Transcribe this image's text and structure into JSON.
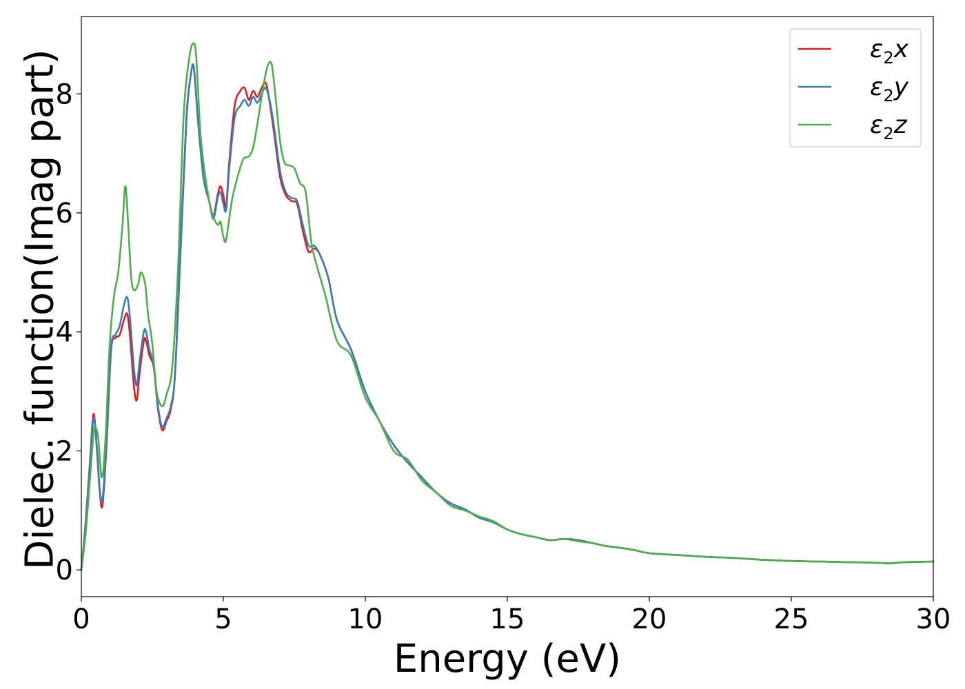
{
  "chart_data": {
    "type": "line",
    "title": "",
    "xlabel": "Energy (eV)",
    "ylabel": "Dielec. function(Imag part)",
    "xlim": [
      0,
      30
    ],
    "ylim": [
      -0.45,
      9.3
    ],
    "xticks": [
      0,
      5,
      10,
      15,
      20,
      25,
      30
    ],
    "yticks": [
      0,
      2,
      4,
      6,
      8
    ],
    "grid": false,
    "legend_position": "top-right",
    "series": [
      {
        "name": "ε2x",
        "legend": {
          "base": "ε",
          "sub": "2",
          "tail": "x"
        },
        "color": "#e41a1c",
        "x": [
          0,
          0.15,
          0.3,
          0.43,
          0.55,
          0.65,
          0.75,
          0.9,
          1.05,
          1.2,
          1.35,
          1.5,
          1.62,
          1.72,
          1.85,
          1.95,
          2.05,
          2.2,
          2.28,
          2.4,
          2.55,
          2.7,
          2.85,
          3.0,
          3.15,
          3.3,
          3.5,
          3.7,
          3.85,
          3.96,
          4.1,
          4.3,
          4.5,
          4.65,
          4.8,
          4.9,
          5.0,
          5.1,
          5.2,
          5.4,
          5.6,
          5.75,
          5.9,
          6.05,
          6.2,
          6.35,
          6.5,
          6.65,
          6.8,
          7.0,
          7.2,
          7.4,
          7.6,
          7.8,
          8.0,
          8.2,
          8.4,
          8.7,
          9.0,
          9.5,
          10.0,
          10.5,
          11.0,
          11.5,
          12.0,
          12.5,
          13.0,
          13.5,
          14.0,
          14.5,
          15.0,
          15.5,
          16.0,
          16.5,
          17.0,
          17.5,
          18.0,
          18.5,
          19.0,
          19.5,
          20.0,
          21.0,
          22.0,
          23.0,
          24.0,
          25.0,
          26.0,
          27.0,
          28.0,
          28.5,
          29.0,
          30.0
        ],
        "y": [
          0,
          0.8,
          1.8,
          2.62,
          2.0,
          1.3,
          1.1,
          2.2,
          3.7,
          3.9,
          3.95,
          4.2,
          4.3,
          3.9,
          3.1,
          2.85,
          3.3,
          3.85,
          3.85,
          3.6,
          3.4,
          2.7,
          2.35,
          2.5,
          2.7,
          3.3,
          5.5,
          7.6,
          8.3,
          8.45,
          7.6,
          6.6,
          6.2,
          5.95,
          6.3,
          6.45,
          6.3,
          6.1,
          6.8,
          7.8,
          8.05,
          8.1,
          7.9,
          8.05,
          7.95,
          8.1,
          8.18,
          7.8,
          7.3,
          6.6,
          6.3,
          6.2,
          6.15,
          5.7,
          5.35,
          5.4,
          5.3,
          4.9,
          4.2,
          3.7,
          3.0,
          2.5,
          2.1,
          1.8,
          1.55,
          1.3,
          1.12,
          1.02,
          0.88,
          0.8,
          0.68,
          0.6,
          0.55,
          0.5,
          0.52,
          0.5,
          0.45,
          0.4,
          0.37,
          0.33,
          0.28,
          0.25,
          0.22,
          0.2,
          0.17,
          0.15,
          0.14,
          0.13,
          0.12,
          0.11,
          0.13,
          0.14
        ]
      },
      {
        "name": "ε2y",
        "legend": {
          "base": "ε",
          "sub": "2",
          "tail": "y"
        },
        "color": "#377eb8",
        "x": [
          0,
          0.15,
          0.3,
          0.43,
          0.55,
          0.65,
          0.75,
          0.9,
          1.05,
          1.2,
          1.35,
          1.5,
          1.62,
          1.72,
          1.85,
          1.95,
          2.05,
          2.2,
          2.28,
          2.4,
          2.55,
          2.7,
          2.85,
          3.0,
          3.15,
          3.3,
          3.5,
          3.7,
          3.85,
          3.96,
          4.1,
          4.3,
          4.5,
          4.65,
          4.8,
          4.9,
          5.0,
          5.1,
          5.2,
          5.4,
          5.6,
          5.75,
          5.9,
          6.05,
          6.2,
          6.35,
          6.5,
          6.65,
          6.8,
          7.0,
          7.2,
          7.4,
          7.6,
          7.8,
          8.0,
          8.2,
          8.4,
          8.7,
          9.0,
          9.5,
          10.0,
          10.5,
          11.0,
          11.5,
          12.0,
          12.5,
          13.0,
          13.5,
          14.0,
          14.5,
          15.0,
          15.5,
          16.0,
          16.5,
          17.0,
          17.5,
          18.0,
          18.5,
          19.0,
          19.5,
          20.0,
          21.0,
          22.0,
          23.0,
          24.0,
          25.0,
          26.0,
          27.0,
          28.0,
          28.5,
          29.0,
          30.0
        ],
        "y": [
          0,
          0.75,
          1.75,
          2.55,
          2.05,
          1.35,
          1.2,
          2.3,
          3.75,
          3.95,
          4.1,
          4.45,
          4.58,
          4.2,
          3.4,
          3.1,
          3.5,
          4.0,
          4.0,
          3.7,
          3.45,
          2.75,
          2.4,
          2.55,
          2.75,
          3.3,
          5.4,
          7.55,
          8.3,
          8.45,
          7.6,
          6.6,
          6.2,
          5.9,
          6.25,
          6.35,
          6.15,
          6.05,
          6.7,
          7.6,
          7.8,
          7.9,
          7.8,
          7.95,
          7.85,
          8.0,
          8.1,
          7.85,
          7.4,
          6.7,
          6.35,
          6.25,
          6.2,
          5.8,
          5.45,
          5.45,
          5.3,
          4.9,
          4.2,
          3.7,
          3.0,
          2.5,
          2.1,
          1.8,
          1.55,
          1.3,
          1.12,
          1.02,
          0.88,
          0.8,
          0.68,
          0.6,
          0.55,
          0.5,
          0.52,
          0.5,
          0.45,
          0.4,
          0.37,
          0.33,
          0.28,
          0.25,
          0.22,
          0.2,
          0.17,
          0.15,
          0.14,
          0.13,
          0.12,
          0.11,
          0.13,
          0.14
        ]
      },
      {
        "name": "ε2z",
        "legend": {
          "base": "ε",
          "sub": "2",
          "tail": "z"
        },
        "color": "#4daf4a",
        "x": [
          0,
          0.15,
          0.3,
          0.43,
          0.5,
          0.6,
          0.72,
          0.85,
          1.0,
          1.15,
          1.3,
          1.45,
          1.55,
          1.65,
          1.75,
          1.85,
          2.0,
          2.1,
          2.25,
          2.35,
          2.5,
          2.65,
          2.85,
          3.0,
          3.2,
          3.4,
          3.6,
          3.8,
          3.95,
          4.05,
          4.2,
          4.4,
          4.6,
          4.8,
          4.9,
          5.0,
          5.1,
          5.3,
          5.5,
          5.7,
          5.9,
          6.05,
          6.2,
          6.4,
          6.55,
          6.7,
          6.85,
          7.0,
          7.15,
          7.3,
          7.5,
          7.7,
          7.9,
          8.1,
          8.3,
          8.6,
          9.0,
          9.5,
          10.0,
          10.5,
          11.0,
          11.5,
          12.0,
          12.5,
          13.0,
          13.5,
          14.0,
          14.5,
          15.0,
          15.5,
          16.0,
          16.5,
          17.0,
          17.5,
          18.0,
          18.5,
          19.0,
          19.5,
          20.0,
          21.0,
          22.0,
          23.0,
          24.0,
          25.0,
          26.0,
          27.0,
          28.0,
          28.5,
          29.0,
          30.0
        ],
        "y": [
          0,
          0.6,
          1.5,
          2.3,
          2.4,
          2.2,
          1.55,
          2.2,
          3.8,
          4.6,
          5.0,
          5.8,
          6.45,
          5.8,
          4.95,
          4.7,
          4.8,
          5.0,
          4.8,
          4.3,
          3.8,
          3.0,
          2.75,
          2.95,
          3.4,
          5.0,
          7.6,
          8.6,
          8.85,
          8.6,
          7.3,
          6.5,
          6.0,
          5.8,
          5.85,
          5.6,
          5.55,
          6.2,
          6.6,
          6.9,
          6.95,
          7.1,
          7.5,
          8.1,
          8.45,
          8.5,
          7.9,
          7.2,
          6.85,
          6.8,
          6.75,
          6.5,
          6.35,
          5.5,
          5.1,
          4.6,
          3.85,
          3.6,
          2.9,
          2.5,
          2.0,
          1.85,
          1.5,
          1.3,
          1.08,
          1.0,
          0.9,
          0.82,
          0.68,
          0.6,
          0.55,
          0.5,
          0.52,
          0.48,
          0.45,
          0.4,
          0.37,
          0.33,
          0.28,
          0.25,
          0.22,
          0.2,
          0.17,
          0.15,
          0.14,
          0.13,
          0.12,
          0.11,
          0.13,
          0.14
        ]
      }
    ]
  }
}
